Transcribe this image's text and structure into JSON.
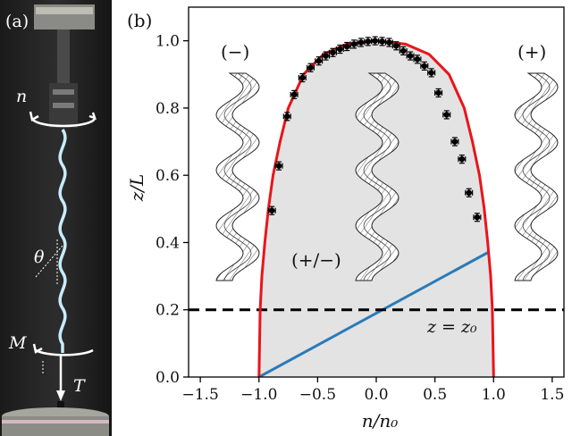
{
  "panel_a": {
    "label": "(a)",
    "n_label": "n",
    "theta_label": "θ",
    "M_label": "M",
    "T_label": "T"
  },
  "chart_data": {
    "type": "scatter",
    "panel_label": "(b)",
    "xlabel": "n/n₀",
    "ylabel": "z/L",
    "xlim": [
      -1.6,
      1.6
    ],
    "ylim": [
      0.0,
      1.1
    ],
    "xticks": [
      -1.5,
      -1.0,
      -0.5,
      0.0,
      0.5,
      1.0,
      1.5
    ],
    "xtick_labels": [
      "−1.5",
      "−1.0",
      "−0.5",
      "0.0",
      "0.5",
      "1.0",
      "1.5"
    ],
    "yticks": [
      0.0,
      0.2,
      0.4,
      0.6,
      0.8,
      1.0
    ],
    "ytick_labels": [
      "0.0",
      "0.2",
      "0.4",
      "0.6",
      "0.8",
      "1.0"
    ],
    "grid": false,
    "region_labels": {
      "left": "(−)",
      "middle": "(+/−)",
      "right": "(+)"
    },
    "threshold": {
      "y": 0.2,
      "label": "z = z₀",
      "color": "#000000",
      "style": "dashed"
    },
    "boundary_curve": {
      "color": "#e8151b",
      "fill": "#e3e3e3",
      "points": [
        [
          -1.0,
          0.0
        ],
        [
          -0.99,
          0.2
        ],
        [
          -0.975,
          0.3
        ],
        [
          -0.95,
          0.4
        ],
        [
          -0.92,
          0.5
        ],
        [
          -0.88,
          0.6
        ],
        [
          -0.82,
          0.7
        ],
        [
          -0.75,
          0.8
        ],
        [
          -0.62,
          0.9
        ],
        [
          -0.45,
          0.96
        ],
        [
          -0.25,
          0.99
        ],
        [
          0.0,
          1.0
        ],
        [
          0.25,
          0.99
        ],
        [
          0.45,
          0.96
        ],
        [
          0.62,
          0.9
        ],
        [
          0.75,
          0.8
        ],
        [
          0.82,
          0.7
        ],
        [
          0.88,
          0.6
        ],
        [
          0.92,
          0.5
        ],
        [
          0.95,
          0.4
        ],
        [
          0.975,
          0.3
        ],
        [
          0.99,
          0.2
        ],
        [
          1.0,
          0.0
        ]
      ]
    },
    "linear_line": {
      "color": "#2a7ab9",
      "points": [
        [
          -1.0,
          0.0
        ],
        [
          0.95,
          0.37
        ]
      ]
    },
    "series": [
      {
        "color": "#000000",
        "points": [
          [
            -0.89,
            0.495,
            0.03,
            0.012
          ],
          [
            -0.83,
            0.628,
            0.03,
            0.012
          ],
          [
            -0.76,
            0.775,
            0.03,
            0.012
          ],
          [
            -0.7,
            0.84,
            0.03,
            0.012
          ],
          [
            -0.63,
            0.89,
            0.03,
            0.012
          ],
          [
            -0.56,
            0.92,
            0.03,
            0.012
          ],
          [
            -0.49,
            0.94,
            0.03,
            0.012
          ],
          [
            -0.43,
            0.955,
            0.03,
            0.012
          ],
          [
            -0.37,
            0.965,
            0.03,
            0.012
          ],
          [
            -0.31,
            0.975,
            0.03,
            0.012
          ],
          [
            -0.25,
            0.983,
            0.03,
            0.012
          ],
          [
            -0.19,
            0.99,
            0.03,
            0.012
          ],
          [
            -0.13,
            0.995,
            0.03,
            0.012
          ],
          [
            -0.07,
            0.998,
            0.03,
            0.012
          ],
          [
            -0.01,
            1.0,
            0.03,
            0.012
          ],
          [
            0.05,
            0.998,
            0.03,
            0.012
          ],
          [
            0.11,
            0.995,
            0.03,
            0.012
          ],
          [
            0.17,
            0.985,
            0.03,
            0.012
          ],
          [
            0.23,
            0.97,
            0.03,
            0.012
          ],
          [
            0.29,
            0.955,
            0.03,
            0.012
          ],
          [
            0.35,
            0.945,
            0.03,
            0.012
          ],
          [
            0.41,
            0.925,
            0.03,
            0.012
          ],
          [
            0.47,
            0.905,
            0.03,
            0.012
          ],
          [
            0.53,
            0.845,
            0.03,
            0.012
          ],
          [
            0.6,
            0.78,
            0.03,
            0.012
          ],
          [
            0.67,
            0.7,
            0.03,
            0.012
          ],
          [
            0.73,
            0.648,
            0.03,
            0.012
          ],
          [
            0.79,
            0.548,
            0.03,
            0.012
          ],
          [
            0.86,
            0.475,
            0.03,
            0.012
          ]
        ]
      }
    ]
  }
}
